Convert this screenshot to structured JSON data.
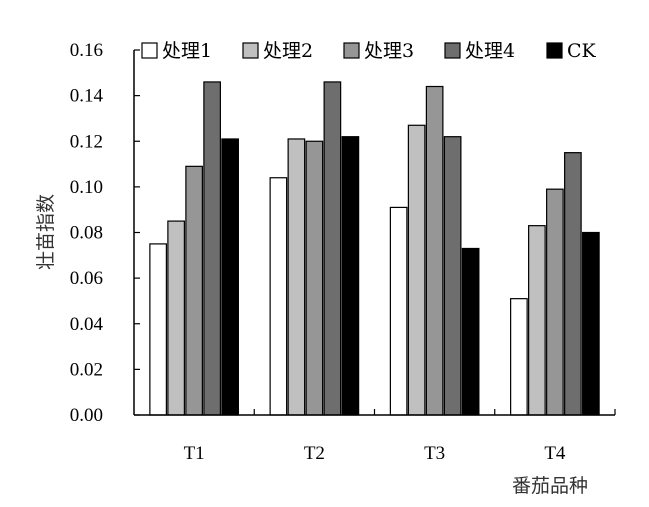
{
  "chart_data": {
    "type": "bar",
    "title": "",
    "xlabel": "番茄品种",
    "ylabel": "壮苗指数",
    "categories": [
      "T1",
      "T2",
      "T3",
      "T4"
    ],
    "ylim": [
      0,
      0.16
    ],
    "yticks": [
      "0.00",
      "0.02",
      "0.04",
      "0.06",
      "0.08",
      "0.10",
      "0.12",
      "0.14",
      "0.16"
    ],
    "legend_position": "top",
    "grid": false,
    "series": [
      {
        "name": "处理1",
        "color": "#ffffff",
        "values": [
          0.075,
          0.104,
          0.091,
          0.051
        ]
      },
      {
        "name": "处理2",
        "color": "#c0c0c0",
        "values": [
          0.085,
          0.121,
          0.127,
          0.083
        ]
      },
      {
        "name": "处理3",
        "color": "#969696",
        "values": [
          0.109,
          0.12,
          0.144,
          0.099
        ]
      },
      {
        "name": "处理4",
        "color": "#6e6e6e",
        "values": [
          0.146,
          0.146,
          0.122,
          0.115
        ]
      },
      {
        "name": "CK",
        "color": "#000000",
        "values": [
          0.121,
          0.122,
          0.073,
          0.08
        ]
      }
    ]
  }
}
